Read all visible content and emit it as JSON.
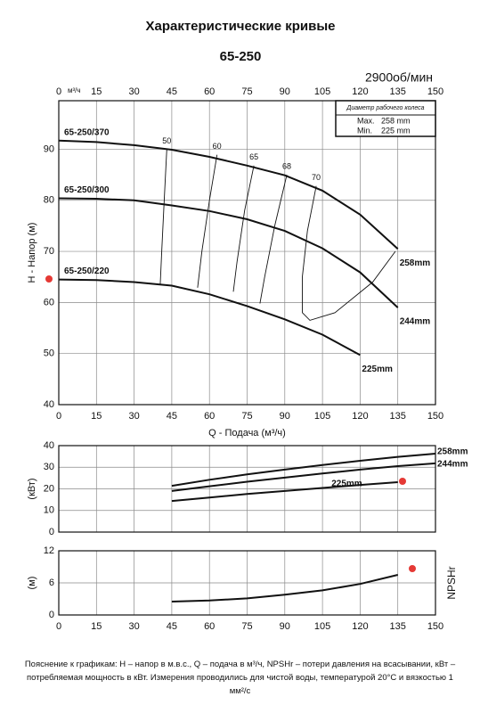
{
  "header": {
    "title": "Характеристические кривые",
    "model": "65-250",
    "speed": "2900об/мин"
  },
  "footnote": "Пояснение к графикам: H – напор в м.в.с., Q – подача в м³/ч, NPSHr – потери давления на всасывании, кВт – потребляемая мощность в кВт. Измерения проводились для чистой воды, температурой 20°C и вязкостью 1 мм²/с",
  "chart_data": [
    {
      "type": "line",
      "x_unit": "м³/ч",
      "x_label": "Q - Подача (м³/ч)",
      "y_label": "H - Напор (м)",
      "xlim": [
        0,
        150
      ],
      "xticks": [
        0,
        15,
        30,
        45,
        60,
        75,
        90,
        105,
        120,
        135,
        150
      ],
      "ylim": [
        40,
        99.5
      ],
      "yticks": [
        40,
        50,
        60,
        70,
        80,
        90
      ],
      "grid": true,
      "legend_box": {
        "title": "Диаметр рабочего колеса",
        "rows": [
          [
            "Max.",
            "258 mm"
          ],
          [
            "Min.",
            "225 mm"
          ]
        ]
      },
      "series": [
        {
          "name": "65-250/370",
          "end_label": "258mm",
          "color": "#111111",
          "x": [
            0,
            15,
            30,
            45,
            60,
            75,
            90,
            105,
            120,
            135
          ],
          "values": [
            91.7,
            91.4,
            90.8,
            89.9,
            88.5,
            86.8,
            84.9,
            81.9,
            77.2,
            70.5
          ]
        },
        {
          "name": "65-250/300",
          "end_label": "244mm",
          "color": "#111111",
          "x": [
            0,
            15,
            30,
            45,
            60,
            75,
            90,
            105,
            120,
            135
          ],
          "values": [
            80.4,
            80.3,
            80,
            79,
            77.9,
            76.3,
            74,
            70.6,
            65.9,
            59
          ]
        },
        {
          "name": "65-250/220",
          "end_label": "225mm",
          "color": "#111111",
          "x": [
            0,
            15,
            30,
            45,
            60,
            75,
            90,
            105,
            120
          ],
          "values": [
            64.5,
            64.4,
            64,
            63.3,
            61.6,
            59.3,
            56.7,
            53.7,
            49.7
          ]
        }
      ],
      "efficiency_lines": [
        {
          "name": "50",
          "x": [
            43,
            42,
            41,
            40.4
          ],
          "values": [
            90,
            80,
            70,
            63.4
          ]
        },
        {
          "name": "60",
          "x": [
            63,
            60,
            57,
            55.3
          ],
          "values": [
            88.9,
            80,
            70,
            62.9
          ]
        },
        {
          "name": "65",
          "x": [
            77.7,
            74,
            71,
            69.5
          ],
          "values": [
            86.8,
            78,
            68,
            62.1
          ]
        },
        {
          "name": "68",
          "x": [
            90.8,
            86,
            82,
            80.1
          ],
          "values": [
            85,
            75,
            65,
            59.8
          ]
        },
        {
          "name": "70",
          "x": [
            102.5,
            99,
            97,
            97,
            100,
            110,
            125,
            134
          ],
          "values": [
            82.8,
            74,
            65,
            58,
            56.5,
            58,
            64,
            70
          ]
        }
      ]
    },
    {
      "type": "line",
      "y_label": "(кВт)",
      "xlim": [
        0,
        150
      ],
      "ylim": [
        0,
        40
      ],
      "yticks": [
        0,
        10,
        20,
        30,
        40
      ],
      "grid": true,
      "series": [
        {
          "name": "258mm",
          "color": "#111111",
          "x": [
            45,
            60,
            75,
            90,
            105,
            120,
            135,
            150
          ],
          "values": [
            21.4,
            24.2,
            26.7,
            28.9,
            31,
            33,
            34.8,
            36.3
          ]
        },
        {
          "name": "244mm",
          "color": "#111111",
          "x": [
            45,
            60,
            75,
            90,
            105,
            120,
            135,
            150
          ],
          "values": [
            19,
            21.2,
            23.3,
            25.2,
            27.1,
            28.9,
            30.5,
            31.8
          ]
        },
        {
          "name": "225mm",
          "color": "#111111",
          "x": [
            45,
            60,
            75,
            90,
            105,
            120,
            135
          ],
          "values": [
            14.4,
            16,
            17.6,
            19,
            20.4,
            21.8,
            23.1
          ]
        }
      ]
    },
    {
      "type": "line",
      "y_label": "(м)",
      "side_label": "NPSHr",
      "xlim": [
        0,
        150
      ],
      "xticks": [
        0,
        15,
        30,
        45,
        60,
        75,
        90,
        105,
        120,
        135,
        150
      ],
      "ylim": [
        0,
        12
      ],
      "yticks": [
        0,
        6,
        12
      ],
      "grid": true,
      "series": [
        {
          "color": "#111111",
          "x": [
            45,
            60,
            75,
            90,
            105,
            120,
            135
          ],
          "values": [
            2.5,
            2.7,
            3.1,
            3.8,
            4.6,
            5.8,
            7.5
          ]
        }
      ]
    }
  ]
}
